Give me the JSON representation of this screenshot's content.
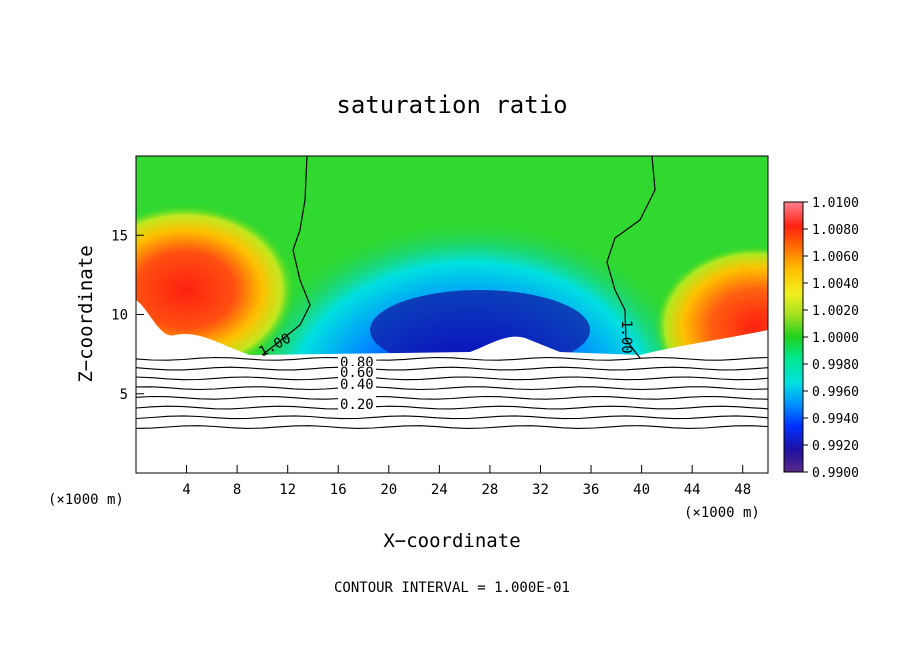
{
  "chart_data": {
    "type": "heatmap",
    "title": "saturation ratio",
    "xlabel": "X−coordinate",
    "ylabel": "Z−coordinate",
    "x_unit_left": "(×1000 m)",
    "x_unit_right": "(×1000 m)",
    "xlim": [
      0,
      50
    ],
    "ylim": [
      0,
      20
    ],
    "x_ticks": [
      4,
      8,
      12,
      16,
      20,
      24,
      28,
      32,
      36,
      40,
      44,
      48
    ],
    "y_ticks": [
      5,
      10,
      15
    ],
    "colorbar": {
      "labels": [
        "1.0100",
        "1.0080",
        "1.0060",
        "1.0040",
        "1.0020",
        "1.0000",
        "0.9980",
        "0.9960",
        "0.9940",
        "0.9920",
        "0.9900"
      ],
      "range": [
        0.99,
        1.01
      ],
      "colors": [
        "#5a2a8a",
        "#2010a0",
        "#0030ff",
        "#0090ff",
        "#00e0e0",
        "#00e890",
        "#20d020",
        "#a0e020",
        "#f0f020",
        "#ffc000",
        "#ff7000",
        "#ff2010",
        "#ff7080"
      ]
    },
    "contour_labels": [
      "1.00",
      "1.00",
      "0.80",
      "0.60",
      "0.40",
      "0.20"
    ],
    "contour_line_levels": [
      0.2,
      0.3,
      0.4,
      0.5,
      0.6,
      0.7,
      0.8,
      0.9,
      1.0
    ],
    "footer": "CONTOUR INTERVAL =  1.000E-01"
  }
}
